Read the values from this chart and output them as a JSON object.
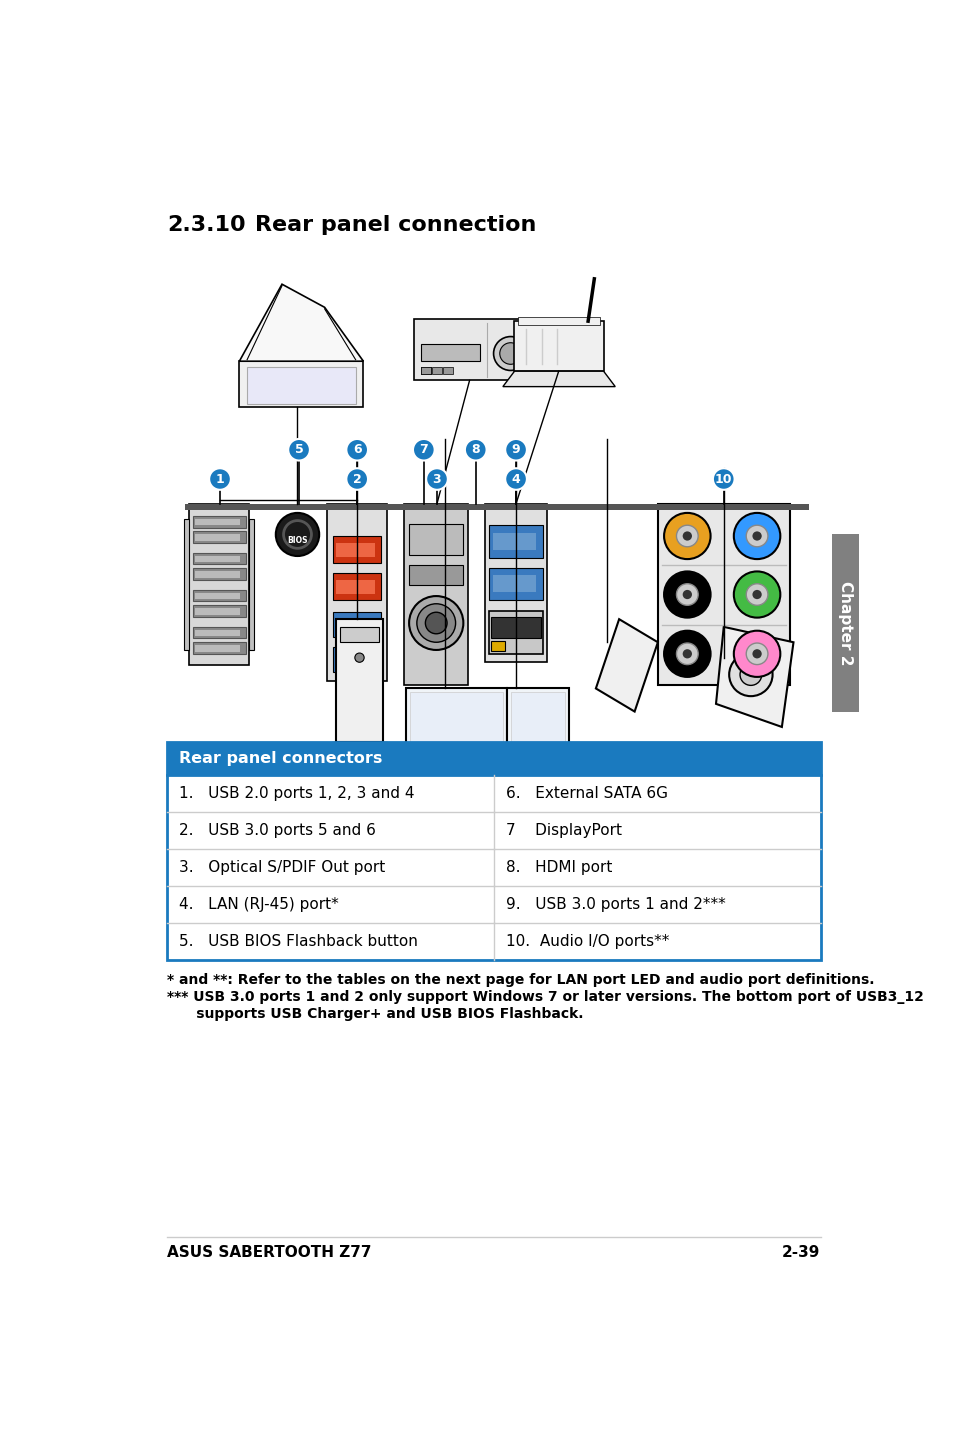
{
  "title_num": "2.3.10",
  "title_text": "Rear panel connection",
  "title_fontsize": 16,
  "table_header": "Rear panel connectors",
  "table_header_bg": "#1a7abf",
  "table_header_color": "#ffffff",
  "table_rows": [
    [
      "1.   USB 2.0 ports 1, 2, 3 and 4",
      "6.   External SATA 6G"
    ],
    [
      "2.   USB 3.0 ports 5 and 6",
      "7    DisplayPort"
    ],
    [
      "3.   Optical S/PDIF Out port",
      "8.   HDMI port"
    ],
    [
      "4.   LAN (RJ-45) port*",
      "9.   USB 3.0 ports 1 and 2***"
    ],
    [
      "5.   USB BIOS Flashback button",
      "10.  Audio I/O ports**"
    ]
  ],
  "footnote1": "* and **: Refer to the tables on the next page for LAN port LED and audio port definitions.",
  "footnote2": "*** USB 3.0 ports 1 and 2 only support Windows 7 or later versions. The bottom port of USB3_12",
  "footnote3": "      supports USB Charger+ and USB BIOS Flashback.",
  "footer_left": "ASUS SABERTOOTH Z77",
  "footer_right": "2-39",
  "bg_color": "#ffffff",
  "sidebar_color": "#808080",
  "sidebar_text": "Chapter 2",
  "border_color": "#1a7abf",
  "table_line_color": "#cccccc",
  "shelf_color": "#555555",
  "audio_colors": [
    "#e8a020",
    "#3399ff",
    "#000000",
    "#44bb44",
    "#000000",
    "#ff88cc"
  ],
  "usb_blue": "#3a7abf",
  "esata_red": "#cc3311"
}
